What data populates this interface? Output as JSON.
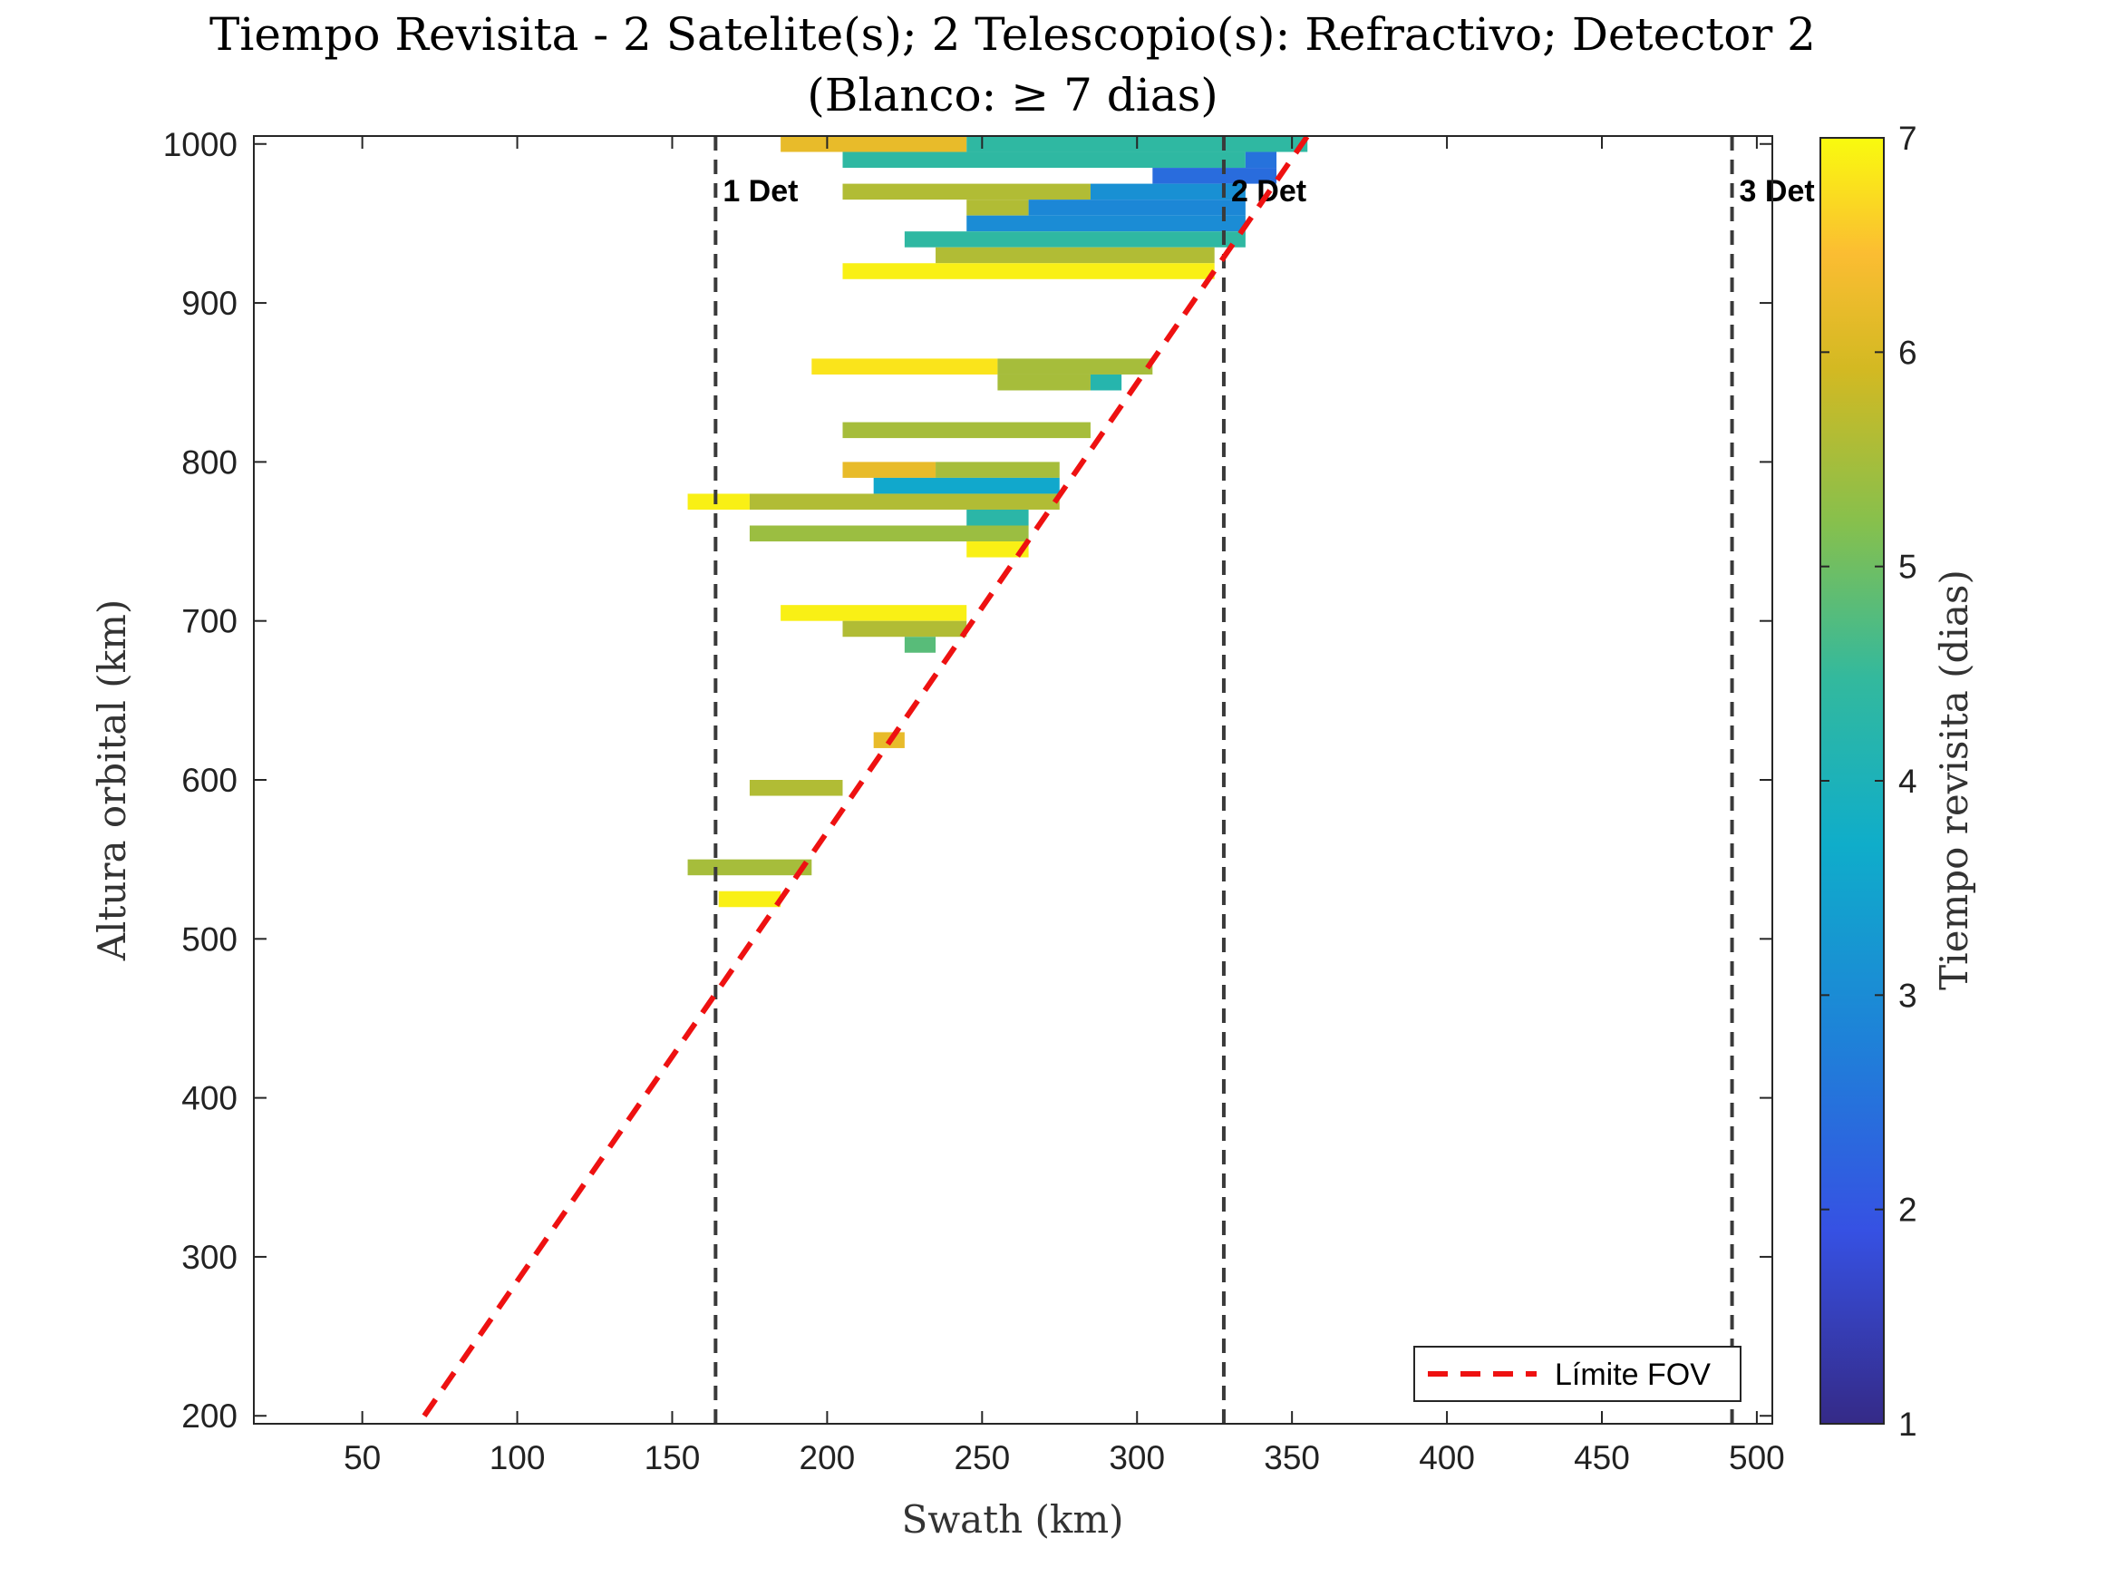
{
  "chart_data": {
    "type": "heatmap",
    "title_line1": "Tiempo Revisita - 2 Satelite(s); 2 Telescopio(s): Refractivo; Detector 2",
    "title_line2": "(Blanco: ≥ 7 dias)",
    "xlabel": "Swath (km)",
    "ylabel": "Altura orbital (km)",
    "xlim": [
      15,
      505
    ],
    "ylim": [
      195,
      1005
    ],
    "xticks": [
      50,
      100,
      150,
      200,
      250,
      300,
      350,
      400,
      450,
      500
    ],
    "yticks": [
      200,
      300,
      400,
      500,
      600,
      700,
      800,
      900,
      1000
    ],
    "colorbar": {
      "label": "Tiempo revisita (dias)",
      "range": [
        1,
        7
      ],
      "ticks": [
        1,
        2,
        3,
        4,
        5,
        6,
        7
      ],
      "colormap": "parula"
    },
    "detector_lines": [
      {
        "x": 164,
        "label": "1 Det"
      },
      {
        "x": 328,
        "label": "2 Det"
      },
      {
        "x": 492,
        "label": "3 Det"
      }
    ],
    "fov_limit": {
      "x": [
        70,
        355
      ],
      "y": [
        200,
        1005
      ],
      "color": "#ee1111",
      "legend": "Límite FOV"
    },
    "cell_height_km": 10,
    "cells": [
      {
        "y": 1000,
        "x0": 185,
        "x1": 245,
        "v": 6.2
      },
      {
        "y": 1000,
        "x0": 245,
        "x1": 355,
        "v": 4.4
      },
      {
        "y": 990,
        "x0": 205,
        "x1": 335,
        "v": 4.4
      },
      {
        "y": 990,
        "x0": 335,
        "x1": 345,
        "v": 2.5
      },
      {
        "y": 980,
        "x0": 305,
        "x1": 345,
        "v": 2.4
      },
      {
        "y": 970,
        "x0": 205,
        "x1": 285,
        "v": 5.6
      },
      {
        "y": 970,
        "x0": 285,
        "x1": 335,
        "v": 3.1
      },
      {
        "y": 960,
        "x0": 245,
        "x1": 265,
        "v": 5.6
      },
      {
        "y": 960,
        "x0": 265,
        "x1": 335,
        "v": 2.9
      },
      {
        "y": 950,
        "x0": 245,
        "x1": 335,
        "v": 3.0
      },
      {
        "y": 940,
        "x0": 225,
        "x1": 335,
        "v": 4.4
      },
      {
        "y": 930,
        "x0": 235,
        "x1": 325,
        "v": 5.6
      },
      {
        "y": 920,
        "x0": 205,
        "x1": 325,
        "v": 6.9
      },
      {
        "y": 860,
        "x0": 195,
        "x1": 255,
        "v": 6.8
      },
      {
        "y": 860,
        "x0": 255,
        "x1": 305,
        "v": 5.5
      },
      {
        "y": 850,
        "x0": 255,
        "x1": 285,
        "v": 5.5
      },
      {
        "y": 850,
        "x0": 285,
        "x1": 295,
        "v": 4.2
      },
      {
        "y": 820,
        "x0": 205,
        "x1": 285,
        "v": 5.5
      },
      {
        "y": 795,
        "x0": 205,
        "x1": 235,
        "v": 6.2
      },
      {
        "y": 795,
        "x0": 235,
        "x1": 275,
        "v": 5.5
      },
      {
        "y": 785,
        "x0": 215,
        "x1": 275,
        "v": 3.6
      },
      {
        "y": 775,
        "x0": 155,
        "x1": 175,
        "v": 6.9
      },
      {
        "y": 775,
        "x0": 175,
        "x1": 275,
        "v": 5.6
      },
      {
        "y": 765,
        "x0": 245,
        "x1": 265,
        "v": 4.3
      },
      {
        "y": 755,
        "x0": 175,
        "x1": 265,
        "v": 5.4
      },
      {
        "y": 745,
        "x0": 245,
        "x1": 265,
        "v": 6.9
      },
      {
        "y": 705,
        "x0": 185,
        "x1": 245,
        "v": 6.9
      },
      {
        "y": 695,
        "x0": 205,
        "x1": 245,
        "v": 5.6
      },
      {
        "y": 685,
        "x0": 225,
        "x1": 235,
        "v": 4.8
      },
      {
        "y": 625,
        "x0": 215,
        "x1": 225,
        "v": 6.2
      },
      {
        "y": 595,
        "x0": 175,
        "x1": 205,
        "v": 5.6
      },
      {
        "y": 545,
        "x0": 155,
        "x1": 195,
        "v": 5.5
      },
      {
        "y": 525,
        "x0": 165,
        "x1": 185,
        "v": 6.9
      }
    ]
  }
}
